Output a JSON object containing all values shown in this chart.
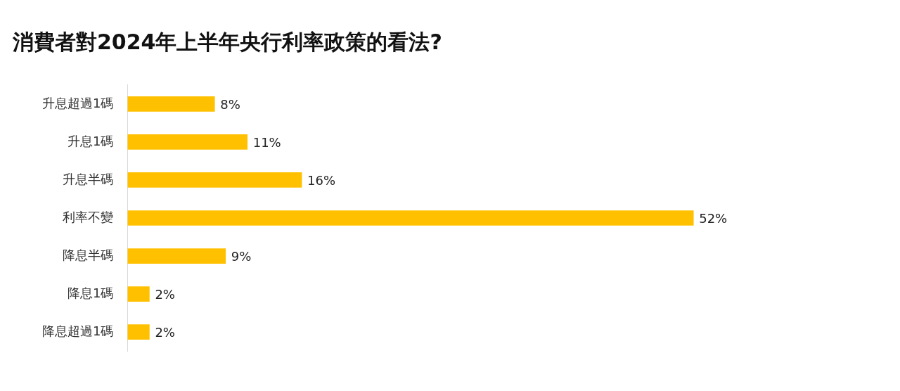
{
  "chart_data": {
    "type": "bar",
    "orientation": "horizontal",
    "title": "消費者對2024年上半年央行利率政策的看法?",
    "categories": [
      "升息超過1碼",
      "升息1碼",
      "升息半碼",
      "利率不變",
      "降息半碼",
      "降息1碼",
      "降息超過1碼"
    ],
    "values": [
      8,
      11,
      16,
      52,
      9,
      2,
      2
    ],
    "value_labels": [
      "8%",
      "11%",
      "16%",
      "52%",
      "9%",
      "2%",
      "2%"
    ],
    "color": "#ffc000"
  }
}
